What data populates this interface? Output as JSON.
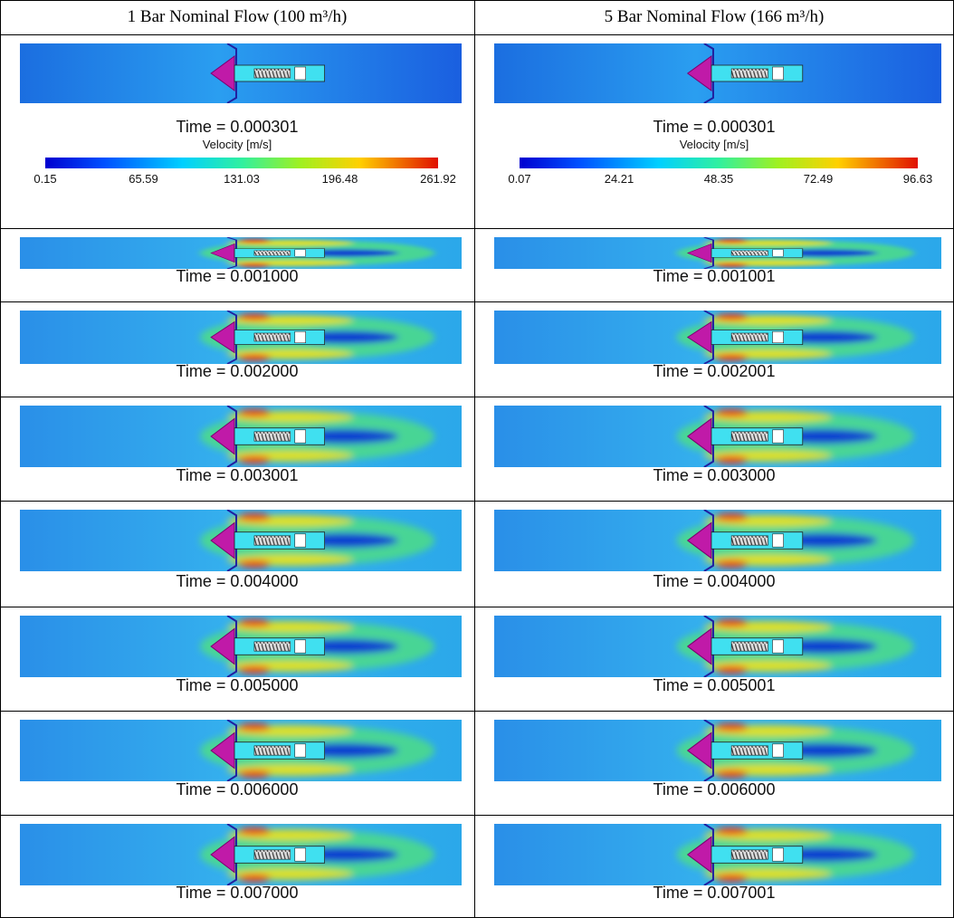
{
  "table": {
    "headers": [
      "1 Bar Nominal Flow (100 m³/h)",
      "5 Bar Nominal Flow (166 m³/h)"
    ],
    "colorbars": [
      {
        "title": "Velocity [m/s]",
        "ticks": [
          "0.15",
          "65.59",
          "131.03",
          "196.48",
          "261.92"
        ]
      },
      {
        "title": "Velocity [m/s]",
        "ticks": [
          "0.07",
          "24.21",
          "48.35",
          "72.49",
          "96.63"
        ]
      }
    ],
    "rows": [
      [
        "Time = 0.000301",
        "Time = 0.000301"
      ],
      [
        "Time = 0.001000",
        "Time = 0.001001"
      ],
      [
        "Time = 0.002000",
        "Time = 0.002001"
      ],
      [
        "Time = 0.003001",
        "Time = 0.003000"
      ],
      [
        "Time = 0.004000",
        "Time = 0.004000"
      ],
      [
        "Time = 0.005000",
        "Time = 0.005001"
      ],
      [
        "Time = 0.006000",
        "Time = 0.006000"
      ],
      [
        "Time = 0.007000",
        "Time = 0.007001"
      ]
    ]
  }
}
